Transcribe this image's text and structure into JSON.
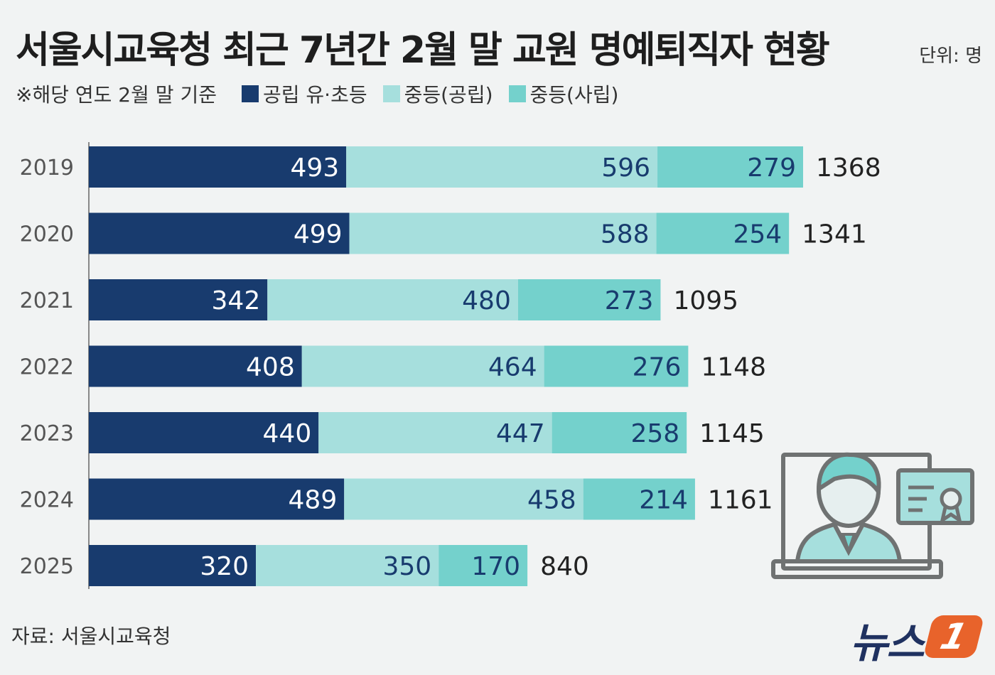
{
  "header": {
    "title": "서울시교육청 최근 7년간 2월 말 교원 명예퇴직자 현황",
    "unit": "단위: 명",
    "note": "※해당 연도 2월 말 기준"
  },
  "footer": {
    "source": "자료: 서울시교육청",
    "logo_text": "뉴스",
    "logo_badge": "1"
  },
  "colors": {
    "series_1": "#183b6e",
    "series_2": "#a6dfdd",
    "series_3": "#74d1cc",
    "label_on_dark": "#ffffff",
    "label_on_light": "#183b6e"
  },
  "chart_data": {
    "type": "bar",
    "orientation": "horizontal",
    "stacked": true,
    "categories": [
      "2019",
      "2020",
      "2021",
      "2022",
      "2023",
      "2024",
      "2025"
    ],
    "series": [
      {
        "name": "공립 유·초등",
        "values": [
          493,
          499,
          342,
          408,
          440,
          489,
          320
        ]
      },
      {
        "name": "중등(공립)",
        "values": [
          596,
          588,
          480,
          464,
          447,
          458,
          350
        ]
      },
      {
        "name": "중등(사립)",
        "values": [
          279,
          254,
          273,
          276,
          258,
          214,
          170
        ]
      }
    ],
    "totals": [
      1368,
      1341,
      1095,
      1148,
      1145,
      1161,
      840
    ],
    "xlim": [
      0,
      1368
    ],
    "legend_position": "top-left",
    "grid": false
  }
}
